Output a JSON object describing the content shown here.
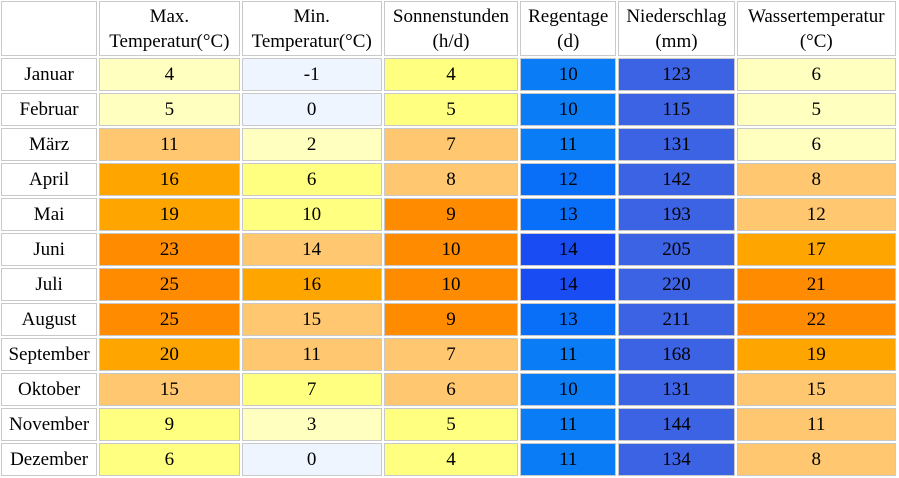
{
  "table": {
    "columns": [
      {
        "line1": "",
        "line2": ""
      },
      {
        "line1": "Max.",
        "line2": "Temperatur(°C)"
      },
      {
        "line1": "Min.",
        "line2": "Temperatur(°C)"
      },
      {
        "line1": "Sonnenstunden",
        "line2": "(h/d)"
      },
      {
        "line1": "Regentage",
        "line2": "(d)"
      },
      {
        "line1": "Niederschlag",
        "line2": "(mm)"
      },
      {
        "line1": "Wassertemperatur",
        "line2": "(°C)"
      }
    ],
    "rows": [
      {
        "month": "Januar",
        "values": [
          "4",
          "-1",
          "4",
          "10",
          "123",
          "6"
        ],
        "colors": [
          "#ffffc0",
          "#eef5ff",
          "#ffff80",
          "#0a7cf6",
          "#3c63e4",
          "#ffffc0"
        ]
      },
      {
        "month": "Februar",
        "values": [
          "5",
          "0",
          "5",
          "10",
          "115",
          "5"
        ],
        "colors": [
          "#ffffc0",
          "#eef5ff",
          "#ffff80",
          "#0a7cf6",
          "#3c63e4",
          "#ffffc0"
        ]
      },
      {
        "month": "März",
        "values": [
          "11",
          "2",
          "7",
          "11",
          "131",
          "6"
        ],
        "colors": [
          "#ffc870",
          "#ffffc0",
          "#ffc870",
          "#0a7cf6",
          "#3c63e4",
          "#ffffc0"
        ]
      },
      {
        "month": "April",
        "values": [
          "16",
          "6",
          "8",
          "12",
          "142",
          "8"
        ],
        "colors": [
          "#ffa500",
          "#ffff80",
          "#ffc870",
          "#0a6ff8",
          "#3c63e4",
          "#ffc870"
        ]
      },
      {
        "month": "Mai",
        "values": [
          "19",
          "10",
          "9",
          "13",
          "193",
          "12"
        ],
        "colors": [
          "#ffa500",
          "#ffff80",
          "#ff8c00",
          "#0a6ff8",
          "#3c63e4",
          "#ffc870"
        ]
      },
      {
        "month": "Juni",
        "values": [
          "23",
          "14",
          "10",
          "14",
          "205",
          "17"
        ],
        "colors": [
          "#ff8c00",
          "#ffc870",
          "#ff8c00",
          "#1a4cf4",
          "#3c63e4",
          "#ffa500"
        ]
      },
      {
        "month": "Juli",
        "values": [
          "25",
          "16",
          "10",
          "14",
          "220",
          "21"
        ],
        "colors": [
          "#ff8c00",
          "#ffa500",
          "#ff8c00",
          "#1a4cf4",
          "#3c63e4",
          "#ff8c00"
        ]
      },
      {
        "month": "August",
        "values": [
          "25",
          "15",
          "9",
          "13",
          "211",
          "22"
        ],
        "colors": [
          "#ff8c00",
          "#ffc870",
          "#ff8c00",
          "#0a6ff8",
          "#3c63e4",
          "#ff8c00"
        ]
      },
      {
        "month": "September",
        "values": [
          "20",
          "11",
          "7",
          "11",
          "168",
          "19"
        ],
        "colors": [
          "#ffa500",
          "#ffc870",
          "#ffc870",
          "#0a7cf6",
          "#3c63e4",
          "#ffa500"
        ]
      },
      {
        "month": "Oktober",
        "values": [
          "15",
          "7",
          "6",
          "10",
          "131",
          "15"
        ],
        "colors": [
          "#ffc870",
          "#ffff80",
          "#ffc870",
          "#0a7cf6",
          "#3c63e4",
          "#ffc870"
        ]
      },
      {
        "month": "November",
        "values": [
          "9",
          "3",
          "5",
          "11",
          "144",
          "11"
        ],
        "colors": [
          "#ffff80",
          "#ffffc0",
          "#ffff80",
          "#0a7cf6",
          "#3c63e4",
          "#ffc870"
        ]
      },
      {
        "month": "Dezember",
        "values": [
          "6",
          "0",
          "4",
          "11",
          "134",
          "8"
        ],
        "colors": [
          "#ffff80",
          "#eef5ff",
          "#ffff80",
          "#0a7cf6",
          "#3c63e4",
          "#ffc870"
        ]
      }
    ]
  }
}
